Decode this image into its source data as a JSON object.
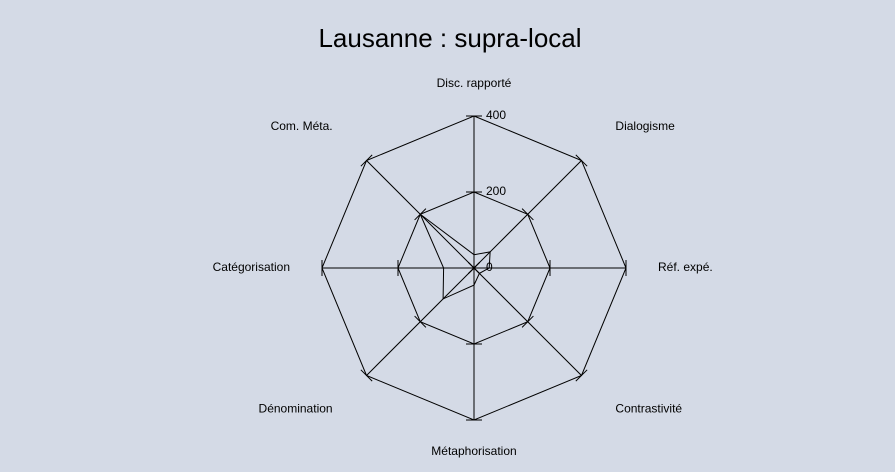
{
  "chart_data": {
    "type": "radar",
    "title": "Lausanne : supra-local",
    "categories": [
      "Disc. rapporté",
      "Dialogisme",
      "Réf. expé.",
      "Contrastivité",
      "Métaphorisation",
      "Dénomination",
      "Catégorisation",
      "Com. Méta."
    ],
    "values": [
      35,
      60,
      40,
      20,
      45,
      115,
      80,
      200
    ],
    "color": "#000000",
    "ylim": [
      0,
      400
    ],
    "yticks": [
      0,
      200,
      400
    ],
    "grid": true
  }
}
